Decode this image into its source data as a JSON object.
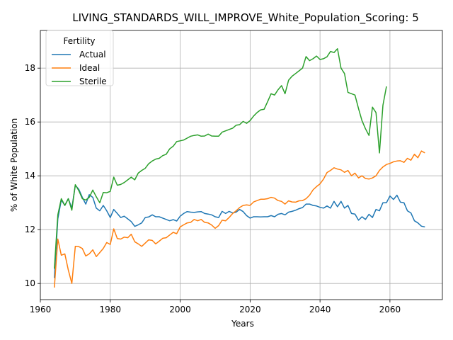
{
  "chart_data": {
    "type": "line",
    "title": "LIVING_STANDARDS_WILL_IMPROVE_White_Population_Scoring: 5",
    "xlabel": "Years",
    "ylabel": "% of White Population",
    "xlim": [
      1960,
      2075
    ],
    "ylim": [
      9.4,
      19.4
    ],
    "xticks": [
      1960,
      1980,
      2000,
      2020,
      2040,
      2060
    ],
    "yticks": [
      10,
      12,
      14,
      16,
      18
    ],
    "grid": true,
    "legend": {
      "title": "Fertility",
      "position": "top-left"
    },
    "series": [
      {
        "name": "Actual",
        "color": "#1f77b4",
        "x": [
          1964,
          1965,
          1966,
          1967,
          1968,
          1969,
          1970,
          1971,
          1972,
          1973,
          1974,
          1975,
          1976,
          1977,
          1978,
          1979,
          1980,
          1981,
          1982,
          1983,
          1984,
          1985,
          1986,
          1987,
          1988,
          1989,
          1990,
          1991,
          1992,
          1993,
          1994,
          1995,
          1996,
          1997,
          1998,
          1999,
          2000,
          2001,
          2002,
          2003,
          2004,
          2005,
          2006,
          2007,
          2008,
          2009,
          2010,
          2011,
          2012,
          2013,
          2014,
          2015,
          2016,
          2017,
          2018,
          2019,
          2020,
          2021,
          2022,
          2023,
          2024,
          2025,
          2026,
          2027,
          2028,
          2029,
          2030,
          2031,
          2032,
          2033,
          2034,
          2035,
          2036,
          2037,
          2038,
          2039,
          2040,
          2041,
          2042,
          2043,
          2044,
          2045,
          2046,
          2047,
          2048,
          2049,
          2050,
          2051,
          2052,
          2053,
          2054,
          2055,
          2056,
          2057,
          2058,
          2059,
          2060,
          2061,
          2062,
          2063,
          2064,
          2065,
          2066,
          2067,
          2068,
          2069,
          2070
        ],
        "values": [
          10.2,
          12.4,
          13.1,
          12.9,
          13.15,
          12.8,
          13.65,
          13.5,
          13.2,
          12.95,
          13.3,
          13.2,
          12.8,
          12.7,
          12.9,
          12.7,
          12.45,
          12.75,
          12.6,
          12.45,
          12.5,
          12.4,
          12.3,
          12.12,
          12.18,
          12.25,
          12.45,
          12.47,
          12.55,
          12.48,
          12.48,
          12.43,
          12.38,
          12.33,
          12.37,
          12.32,
          12.5,
          12.6,
          12.67,
          12.65,
          12.64,
          12.66,
          12.67,
          12.6,
          12.58,
          12.55,
          12.48,
          12.45,
          12.68,
          12.6,
          12.68,
          12.62,
          12.65,
          12.75,
          12.67,
          12.52,
          12.43,
          12.48,
          12.48,
          12.47,
          12.48,
          12.48,
          12.52,
          12.48,
          12.57,
          12.6,
          12.55,
          12.65,
          12.68,
          12.72,
          12.78,
          12.82,
          12.95,
          12.95,
          12.9,
          12.88,
          12.83,
          12.8,
          12.88,
          12.8,
          13.05,
          12.85,
          13.05,
          12.8,
          12.9,
          12.6,
          12.58,
          12.35,
          12.48,
          12.38,
          12.57,
          12.45,
          12.75,
          12.7,
          13.0,
          13.0,
          13.25,
          13.12,
          13.28,
          13.02,
          13.0,
          12.7,
          12.62,
          12.33,
          12.25,
          12.13,
          12.1
        ]
      },
      {
        "name": "Ideal",
        "color": "#ff7f0e",
        "x": [
          1964,
          1965,
          1966,
          1967,
          1968,
          1969,
          1970,
          1971,
          1972,
          1973,
          1974,
          1975,
          1976,
          1977,
          1978,
          1979,
          1980,
          1981,
          1982,
          1983,
          1984,
          1985,
          1986,
          1987,
          1988,
          1989,
          1990,
          1991,
          1992,
          1993,
          1994,
          1995,
          1996,
          1997,
          1998,
          1999,
          2000,
          2001,
          2002,
          2003,
          2004,
          2005,
          2006,
          2007,
          2008,
          2009,
          2010,
          2011,
          2012,
          2013,
          2014,
          2015,
          2016,
          2017,
          2018,
          2019,
          2020,
          2021,
          2022,
          2023,
          2024,
          2025,
          2026,
          2027,
          2028,
          2029,
          2030,
          2031,
          2032,
          2033,
          2034,
          2035,
          2036,
          2037,
          2038,
          2039,
          2040,
          2041,
          2042,
          2043,
          2044,
          2045,
          2046,
          2047,
          2048,
          2049,
          2050,
          2051,
          2052,
          2053,
          2054,
          2055,
          2056,
          2057,
          2058,
          2059,
          2060,
          2061,
          2062,
          2063,
          2064,
          2065,
          2066,
          2067,
          2068,
          2069,
          2070
        ],
        "values": [
          9.85,
          11.65,
          11.05,
          11.1,
          10.5,
          10.0,
          11.38,
          11.37,
          11.3,
          11.02,
          11.1,
          11.25,
          11.0,
          11.15,
          11.3,
          11.52,
          11.45,
          12.03,
          11.67,
          11.65,
          11.72,
          11.7,
          11.83,
          11.55,
          11.47,
          11.38,
          11.5,
          11.62,
          11.6,
          11.47,
          11.57,
          11.68,
          11.7,
          11.8,
          11.9,
          11.85,
          12.1,
          12.18,
          12.25,
          12.27,
          12.38,
          12.33,
          12.38,
          12.27,
          12.25,
          12.17,
          12.05,
          12.15,
          12.35,
          12.33,
          12.45,
          12.6,
          12.7,
          12.82,
          12.9,
          12.92,
          12.9,
          13.03,
          13.08,
          13.13,
          13.13,
          13.15,
          13.2,
          13.17,
          13.08,
          13.05,
          12.95,
          13.07,
          13.03,
          13.02,
          13.07,
          13.08,
          13.15,
          13.28,
          13.48,
          13.6,
          13.7,
          13.88,
          14.12,
          14.2,
          14.3,
          14.25,
          14.22,
          14.13,
          14.2,
          14.0,
          14.1,
          13.92,
          14.0,
          13.9,
          13.88,
          13.92,
          14.0,
          14.2,
          14.33,
          14.42,
          14.46,
          14.52,
          14.55,
          14.56,
          14.5,
          14.65,
          14.58,
          14.8,
          14.67,
          14.92,
          14.85
        ]
      },
      {
        "name": "Sterile",
        "color": "#2ca02c",
        "x": [
          1964,
          1965,
          1966,
          1967,
          1968,
          1969,
          1970,
          1971,
          1972,
          1973,
          1974,
          1975,
          1976,
          1977,
          1978,
          1979,
          1980,
          1981,
          1982,
          1983,
          1984,
          1985,
          1986,
          1987,
          1988,
          1989,
          1990,
          1991,
          1992,
          1993,
          1994,
          1995,
          1996,
          1997,
          1998,
          1999,
          2000,
          2001,
          2002,
          2003,
          2004,
          2005,
          2006,
          2007,
          2008,
          2009,
          2010,
          2011,
          2012,
          2013,
          2014,
          2015,
          2016,
          2017,
          2018,
          2019,
          2020,
          2021,
          2022,
          2023,
          2024,
          2025,
          2026,
          2027,
          2028,
          2029,
          2030,
          2031,
          2032,
          2033,
          2034,
          2035,
          2036,
          2037,
          2038,
          2039,
          2040,
          2041,
          2042,
          2043,
          2044,
          2045,
          2046,
          2047,
          2048,
          2049,
          2050,
          2051,
          2052,
          2053,
          2054,
          2055,
          2056,
          2057,
          2058,
          2059
        ],
        "values": [
          10.55,
          12.55,
          13.15,
          12.9,
          13.15,
          12.72,
          13.67,
          13.45,
          13.15,
          13.1,
          13.2,
          13.47,
          13.22,
          13.0,
          13.38,
          13.37,
          13.42,
          13.95,
          13.65,
          13.68,
          13.75,
          13.85,
          13.95,
          13.85,
          14.1,
          14.2,
          14.28,
          14.45,
          14.55,
          14.62,
          14.65,
          14.75,
          14.8,
          15.0,
          15.1,
          15.27,
          15.3,
          15.33,
          15.4,
          15.47,
          15.5,
          15.52,
          15.47,
          15.48,
          15.55,
          15.48,
          15.47,
          15.47,
          15.62,
          15.67,
          15.72,
          15.77,
          15.88,
          15.9,
          16.02,
          15.95,
          16.05,
          16.22,
          16.35,
          16.45,
          16.47,
          16.75,
          17.05,
          17.0,
          17.2,
          17.35,
          17.05,
          17.55,
          17.7,
          17.8,
          17.9,
          18.0,
          18.43,
          18.28,
          18.35,
          18.45,
          18.32,
          18.35,
          18.42,
          18.62,
          18.58,
          18.72,
          18.0,
          17.8,
          17.1,
          17.05,
          17.0,
          16.5,
          16.05,
          15.75,
          15.5,
          16.55,
          16.35,
          14.85,
          16.62,
          17.32
        ]
      }
    ]
  }
}
